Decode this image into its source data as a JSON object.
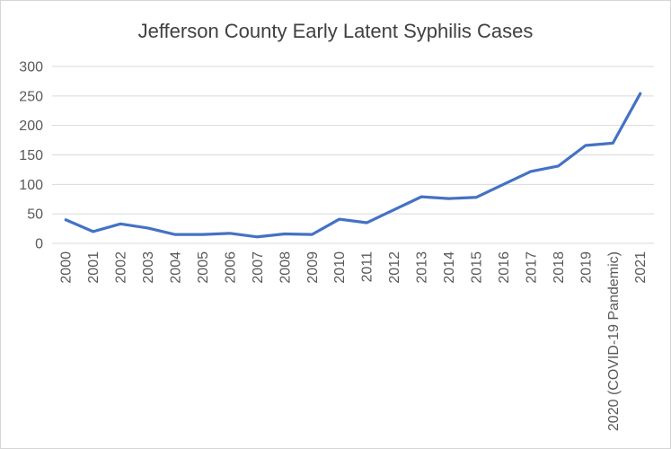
{
  "chart": {
    "title": "Jefferson County Early Latent Syphilis Cases"
  },
  "chart_data": {
    "type": "line",
    "title": "Jefferson County Early Latent Syphilis Cases",
    "categories": [
      "2000",
      "2001",
      "2002",
      "2003",
      "2004",
      "2005",
      "2006",
      "2007",
      "2008",
      "2009",
      "2010",
      "2011",
      "2012",
      "2013",
      "2014",
      "2015",
      "2016",
      "2017",
      "2018",
      "2019",
      "2020 (COVID-19 Pandemic)",
      "2021"
    ],
    "series": [
      {
        "name": "Early Latent Syphilis Cases",
        "values": [
          40,
          20,
          33,
          26,
          15,
          15,
          17,
          11,
          16,
          15,
          41,
          35,
          57,
          79,
          76,
          78,
          100,
          122,
          131,
          166,
          170,
          254
        ]
      }
    ],
    "xlabel": "",
    "ylabel": "",
    "ylim": [
      0,
      300
    ],
    "ytick_interval": 50,
    "yticks": [
      0,
      50,
      100,
      150,
      200,
      250,
      300
    ],
    "grid": true,
    "legend": "none",
    "line_color": "#4472C4",
    "gridline_color": "#D9D9D9",
    "axis_label_color": "#595959",
    "title_color": "#404040"
  }
}
